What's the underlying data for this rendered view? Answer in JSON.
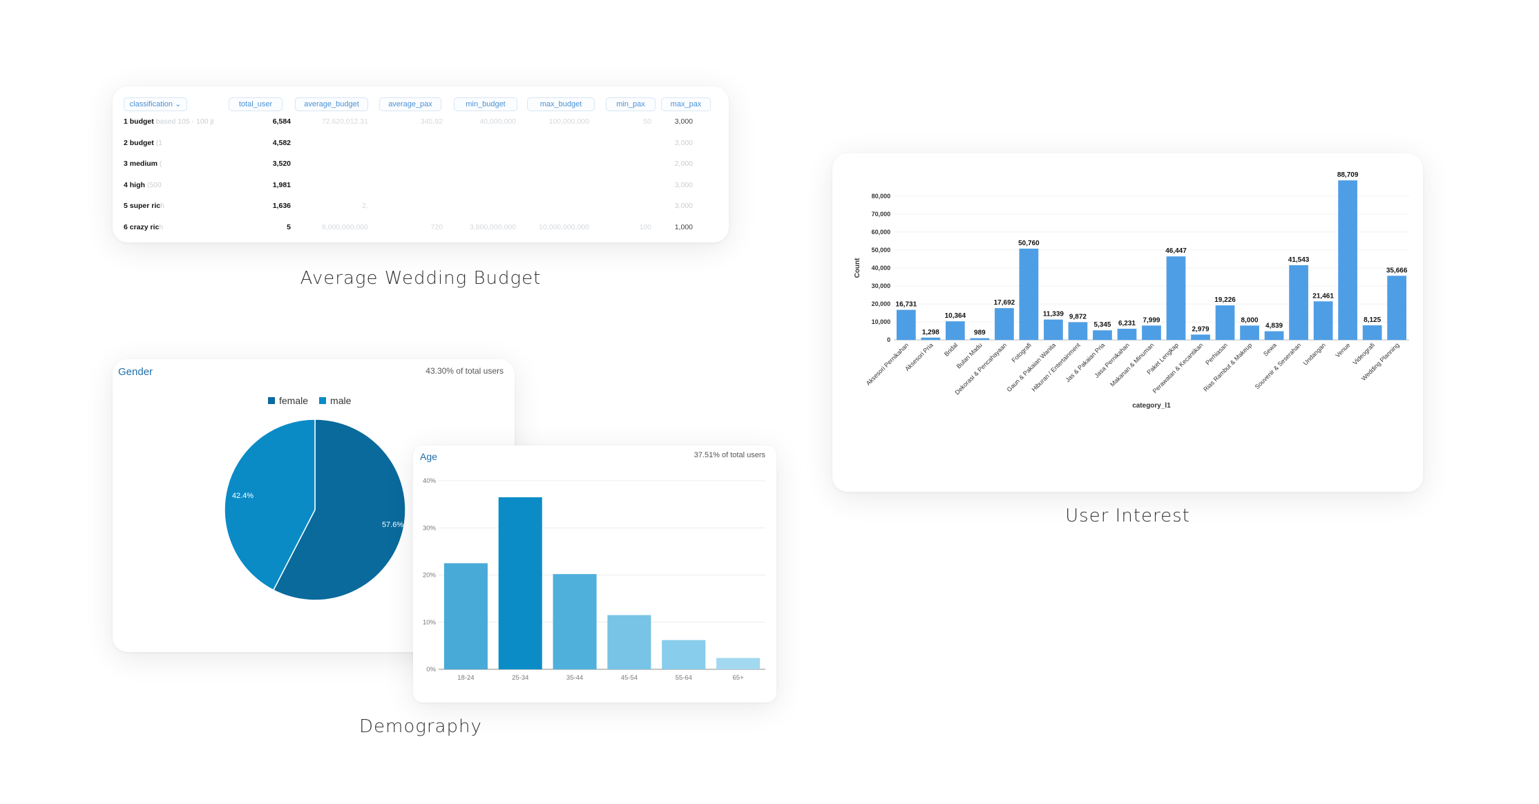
{
  "captions": {
    "budget": "Average Wedding Budget",
    "demography": "Demography",
    "interest": "User Interest"
  },
  "budget_table": {
    "columns": [
      "classification",
      "total_user",
      "average_budget",
      "average_pax",
      "min_budget",
      "max_budget",
      "min_pax",
      "max_pax"
    ],
    "rows": [
      {
        "class_main": "1 budget",
        "class_fade": " based 105 - 100 jt",
        "total_user": "6,584",
        "average_budget": "72,620,012.31",
        "average_pax": "345.92",
        "min_budget": "40,000,000",
        "max_budget": "100,000,000",
        "min_pax": "50",
        "max_pax": "3,000"
      },
      {
        "class_main": "2 budget",
        "class_fade": " (1",
        "total_user": "4,582",
        "average_budget": "",
        "average_pax": "",
        "min_budget": "",
        "max_budget": "",
        "min_pax": "",
        "max_pax": "3,000"
      },
      {
        "class_main": "3 medium",
        "class_fade": " (",
        "total_user": "3,520",
        "average_budget": "",
        "average_pax": "",
        "min_budget": "",
        "max_budget": "",
        "min_pax": "",
        "max_pax": "2,000"
      },
      {
        "class_main": "4 high",
        "class_fade": " (500",
        "total_user": "1,981",
        "average_budget": "",
        "average_pax": "",
        "min_budget": "",
        "max_budget": "",
        "min_pax": "",
        "max_pax": "3,000"
      },
      {
        "class_main": "5 super ric",
        "class_fade": "h",
        "total_user": "1,636",
        "average_budget": "2,",
        "average_pax": "",
        "min_budget": "",
        "max_budget": "",
        "min_pax": "",
        "max_pax": "3,000"
      },
      {
        "class_main": "6 crazy ric",
        "class_fade": "h",
        "total_user": "5",
        "average_budget": "8,000,000,000",
        "average_pax": "720",
        "min_budget": "3,800,000,000",
        "max_budget": "10,000,000,000",
        "min_pax": "100",
        "max_pax": "1,000"
      }
    ]
  },
  "gender_card": {
    "title": "Gender",
    "subtitle": "43.30% of total users",
    "legend": [
      {
        "label": "female",
        "color": "#0a6a9c"
      },
      {
        "label": "male",
        "color": "#0a8bc6"
      }
    ]
  },
  "age_card": {
    "title": "Age",
    "subtitle": "37.51% of total users"
  },
  "colors": {
    "interest_bar": "#4e9ee5",
    "female": "#0a6a9c",
    "male": "#0a8bc6"
  },
  "chart_data": [
    {
      "type": "pie",
      "labels": [
        "female",
        "male"
      ],
      "values": [
        57.6,
        42.4
      ],
      "value_labels": [
        "57.6%",
        "42.4%"
      ],
      "colors": [
        "#0a6a9c",
        "#0a8bc6"
      ],
      "legend": "top"
    },
    {
      "type": "bar",
      "categories": [
        "18-24",
        "25-34",
        "35-44",
        "45-54",
        "55-64",
        "65+"
      ],
      "values": [
        22.5,
        36.5,
        20.2,
        11.5,
        6.2,
        2.4
      ],
      "ylim": [
        0,
        40
      ],
      "yticks": [
        "0%",
        "10%",
        "20%",
        "30%",
        "40%"
      ],
      "colors": [
        "#47aad7",
        "#0b8cc7",
        "#4fb0db",
        "#77c4e6",
        "#88cdeb",
        "#a2d8f0"
      ],
      "grid": true
    },
    {
      "type": "bar",
      "categories": [
        "Aksesori Pernikahan",
        "Aksesori Pria",
        "Bridal",
        "Bulan Madu",
        "Dekorasi & Pencahayaan",
        "Fotografi",
        "Gaun & Pakaian Wanita",
        "Hiburan / Entertainment",
        "Jas & Pakaian Pria",
        "Jasa Pernikahan",
        "Makanan & Minuman",
        "Paket Lengkap",
        "Perawatan & Kecantikan",
        "Perhiasan",
        "Rias Rambut & Makeup",
        "Sewa",
        "Souvenir & Seserahan",
        "Undangan",
        "Venue",
        "Videografi",
        "Wedding Planning"
      ],
      "values": [
        16731,
        1298,
        10364,
        989,
        17692,
        50760,
        11339,
        9872,
        5345,
        6231,
        7999,
        46447,
        2979,
        19226,
        8000,
        4839,
        41543,
        21461,
        88709,
        8125,
        35666
      ],
      "value_labels": [
        "16,731",
        "1,298",
        "10,364",
        "989",
        "17,692",
        "50,760",
        "11,339",
        "9,872",
        "5,345",
        "6,231",
        "7,999",
        "46,447",
        "2,979",
        "19,226",
        "8,000",
        "4,839",
        "41,543",
        "21,461",
        "88,709",
        "8,125",
        "35,666"
      ],
      "ylim": [
        0,
        80000
      ],
      "yticks": [
        "0",
        "10,000",
        "20,000",
        "30,000",
        "40,000",
        "50,000",
        "60,000",
        "70,000",
        "80,000"
      ],
      "xlabel": "category_l1",
      "ylabel": "Count",
      "grid": true
    }
  ]
}
